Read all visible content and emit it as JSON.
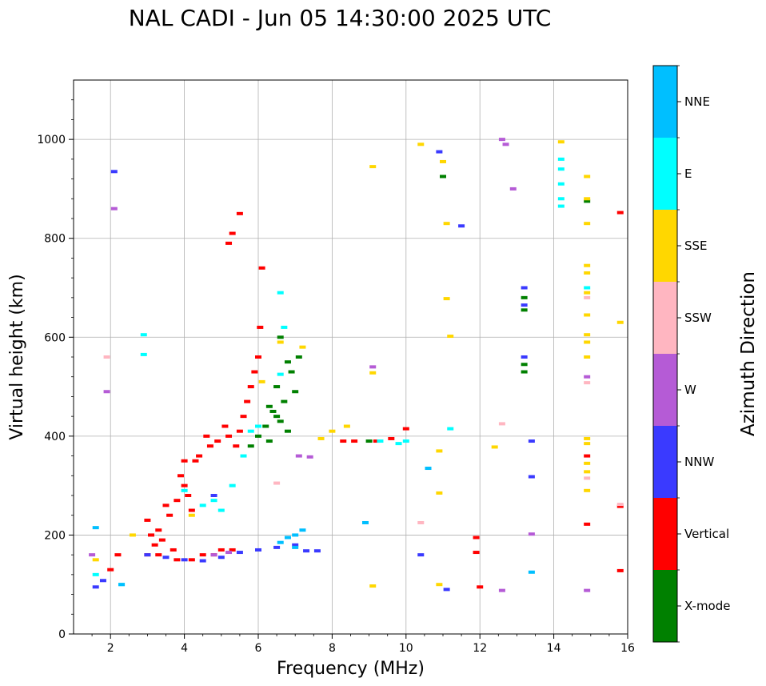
{
  "chart_data": {
    "type": "scatter",
    "title": "NAL CADI - Jun 05 14:30:00 2025 UTC",
    "xlabel": "Frequency (MHz)",
    "ylabel": "Virtual height (km)",
    "xlim": [
      1,
      16
    ],
    "ylim": [
      0,
      1120
    ],
    "xticks": [
      2,
      4,
      6,
      8,
      10,
      12,
      14,
      16
    ],
    "yticks": [
      0,
      200,
      400,
      600,
      800,
      1000
    ],
    "grid": true,
    "colorbar": {
      "title": "Azimuth Direction",
      "categories": [
        {
          "name": "X-mode",
          "color": "#008000"
        },
        {
          "name": "Vertical",
          "color": "#ff0000"
        },
        {
          "name": "NNW",
          "color": "#3a3aff"
        },
        {
          "name": "W",
          "color": "#b55bd6"
        },
        {
          "name": "SSW",
          "color": "#ffb6c1"
        },
        {
          "name": "SSE",
          "color": "#ffd700"
        },
        {
          "name": "E",
          "color": "#00ffff"
        },
        {
          "name": "NNE",
          "color": "#00bfff"
        }
      ]
    },
    "series": [
      {
        "name": "X-mode",
        "points": [
          [
            6.3,
            460
          ],
          [
            6.4,
            450
          ],
          [
            6.5,
            440
          ],
          [
            6.6,
            430
          ],
          [
            6.7,
            470
          ],
          [
            6.8,
            410
          ],
          [
            6.9,
            530
          ],
          [
            7.0,
            490
          ],
          [
            7.1,
            560
          ],
          [
            6.5,
            500
          ],
          [
            6.2,
            420
          ],
          [
            6.0,
            400
          ],
          [
            5.8,
            380
          ],
          [
            6.6,
            600
          ],
          [
            6.8,
            550
          ],
          [
            6.3,
            390
          ],
          [
            9.0,
            390
          ],
          [
            11.0,
            925
          ],
          [
            13.2,
            680
          ],
          [
            13.2,
            655
          ],
          [
            13.2,
            545
          ],
          [
            13.2,
            530
          ],
          [
            14.9,
            875
          ]
        ]
      },
      {
        "name": "Vertical",
        "points": [
          [
            2.2,
            160
          ],
          [
            2.0,
            130
          ],
          [
            3.0,
            230
          ],
          [
            3.1,
            200
          ],
          [
            3.2,
            180
          ],
          [
            3.3,
            210
          ],
          [
            3.4,
            190
          ],
          [
            3.5,
            260
          ],
          [
            3.6,
            240
          ],
          [
            3.7,
            170
          ],
          [
            3.8,
            150
          ],
          [
            3.9,
            320
          ],
          [
            4.0,
            300
          ],
          [
            4.1,
            280
          ],
          [
            4.2,
            150
          ],
          [
            4.3,
            350
          ],
          [
            4.4,
            360
          ],
          [
            4.5,
            160
          ],
          [
            4.6,
            400
          ],
          [
            4.7,
            380
          ],
          [
            4.8,
            160
          ],
          [
            4.9,
            390
          ],
          [
            5.0,
            170
          ],
          [
            5.1,
            420
          ],
          [
            5.2,
            400
          ],
          [
            5.3,
            170
          ],
          [
            5.4,
            380
          ],
          [
            5.5,
            410
          ],
          [
            5.6,
            440
          ],
          [
            5.7,
            470
          ],
          [
            5.8,
            500
          ],
          [
            5.9,
            530
          ],
          [
            6.0,
            560
          ],
          [
            6.05,
            620
          ],
          [
            6.1,
            740
          ],
          [
            5.2,
            790
          ],
          [
            5.3,
            810
          ],
          [
            5.5,
            850
          ],
          [
            4.2,
            250
          ],
          [
            4.0,
            350
          ],
          [
            3.8,
            270
          ],
          [
            3.3,
            160
          ],
          [
            3.0,
            160
          ],
          [
            8.3,
            390
          ],
          [
            8.6,
            390
          ],
          [
            9.2,
            390
          ],
          [
            9.6,
            395
          ],
          [
            10.0,
            415
          ],
          [
            11.9,
            195
          ],
          [
            11.9,
            165
          ],
          [
            12.0,
            95
          ],
          [
            14.9,
            360
          ],
          [
            14.9,
            222
          ],
          [
            15.8,
            852
          ],
          [
            15.8,
            258
          ],
          [
            15.8,
            128
          ]
        ]
      },
      {
        "name": "NNW",
        "points": [
          [
            1.6,
            95
          ],
          [
            1.8,
            108
          ],
          [
            2.1,
            935
          ],
          [
            3.0,
            160
          ],
          [
            3.5,
            155
          ],
          [
            4.0,
            150
          ],
          [
            4.5,
            148
          ],
          [
            5.0,
            155
          ],
          [
            5.5,
            165
          ],
          [
            6.0,
            170
          ],
          [
            6.5,
            175
          ],
          [
            7.0,
            180
          ],
          [
            7.3,
            168
          ],
          [
            7.6,
            168
          ],
          [
            4.8,
            280
          ],
          [
            10.4,
            160
          ],
          [
            10.9,
            975
          ],
          [
            11.1,
            90
          ],
          [
            11.5,
            825
          ],
          [
            13.2,
            700
          ],
          [
            13.2,
            560
          ],
          [
            13.2,
            665
          ],
          [
            13.4,
            318
          ],
          [
            13.4,
            390
          ]
        ]
      },
      {
        "name": "W",
        "points": [
          [
            1.5,
            160
          ],
          [
            1.9,
            490
          ],
          [
            2.1,
            860
          ],
          [
            4.8,
            160
          ],
          [
            5.2,
            165
          ],
          [
            7.1,
            360
          ],
          [
            7.4,
            358
          ],
          [
            9.1,
            540
          ],
          [
            12.6,
            1000
          ],
          [
            12.7,
            990
          ],
          [
            12.9,
            900
          ],
          [
            13.4,
            202
          ],
          [
            12.6,
            88
          ],
          [
            14.9,
            520
          ],
          [
            14.9,
            88
          ]
        ]
      },
      {
        "name": "SSW",
        "points": [
          [
            1.9,
            560
          ],
          [
            6.5,
            305
          ],
          [
            10.4,
            225
          ],
          [
            12.6,
            425
          ],
          [
            14.9,
            508
          ],
          [
            14.9,
            680
          ],
          [
            14.9,
            315
          ],
          [
            15.8,
            262
          ]
        ]
      },
      {
        "name": "SSE",
        "points": [
          [
            1.6,
            150
          ],
          [
            2.6,
            200
          ],
          [
            4.2,
            240
          ],
          [
            6.1,
            510
          ],
          [
            6.6,
            590
          ],
          [
            7.2,
            580
          ],
          [
            7.7,
            395
          ],
          [
            8.0,
            410
          ],
          [
            8.4,
            420
          ],
          [
            9.1,
            528
          ],
          [
            9.1,
            945
          ],
          [
            9.1,
            97
          ],
          [
            10.4,
            990
          ],
          [
            10.9,
            370
          ],
          [
            10.9,
            285
          ],
          [
            10.9,
            100
          ],
          [
            11.0,
            955
          ],
          [
            11.1,
            830
          ],
          [
            11.1,
            678
          ],
          [
            11.2,
            602
          ],
          [
            12.4,
            378
          ],
          [
            14.2,
            995
          ],
          [
            14.9,
            925
          ],
          [
            14.9,
            880
          ],
          [
            14.9,
            830
          ],
          [
            14.9,
            745
          ],
          [
            14.9,
            730
          ],
          [
            14.9,
            690
          ],
          [
            14.9,
            645
          ],
          [
            14.9,
            605
          ],
          [
            14.9,
            590
          ],
          [
            14.9,
            560
          ],
          [
            14.9,
            395
          ],
          [
            14.9,
            385
          ],
          [
            14.9,
            345
          ],
          [
            14.9,
            328
          ],
          [
            14.9,
            290
          ],
          [
            15.8,
            630
          ]
        ]
      },
      {
        "name": "E",
        "points": [
          [
            1.6,
            120
          ],
          [
            2.3,
            100
          ],
          [
            2.9,
            605
          ],
          [
            2.9,
            565
          ],
          [
            4.0,
            290
          ],
          [
            4.5,
            260
          ],
          [
            4.8,
            270
          ],
          [
            5.0,
            250
          ],
          [
            5.3,
            300
          ],
          [
            5.6,
            360
          ],
          [
            5.8,
            410
          ],
          [
            6.0,
            420
          ],
          [
            6.6,
            525
          ],
          [
            6.6,
            690
          ],
          [
            6.7,
            620
          ],
          [
            9.3,
            390
          ],
          [
            9.8,
            385
          ],
          [
            10.0,
            390
          ],
          [
            11.2,
            415
          ],
          [
            14.2,
            960
          ],
          [
            14.2,
            940
          ],
          [
            14.2,
            910
          ],
          [
            14.2,
            880
          ],
          [
            14.2,
            865
          ],
          [
            14.9,
            700
          ]
        ]
      },
      {
        "name": "NNE",
        "points": [
          [
            1.6,
            215
          ],
          [
            2.3,
            100
          ],
          [
            6.6,
            185
          ],
          [
            6.8,
            195
          ],
          [
            7.0,
            200
          ],
          [
            7.2,
            210
          ],
          [
            7.0,
            175
          ],
          [
            8.9,
            225
          ],
          [
            10.6,
            335
          ],
          [
            13.4,
            125
          ]
        ]
      }
    ]
  }
}
